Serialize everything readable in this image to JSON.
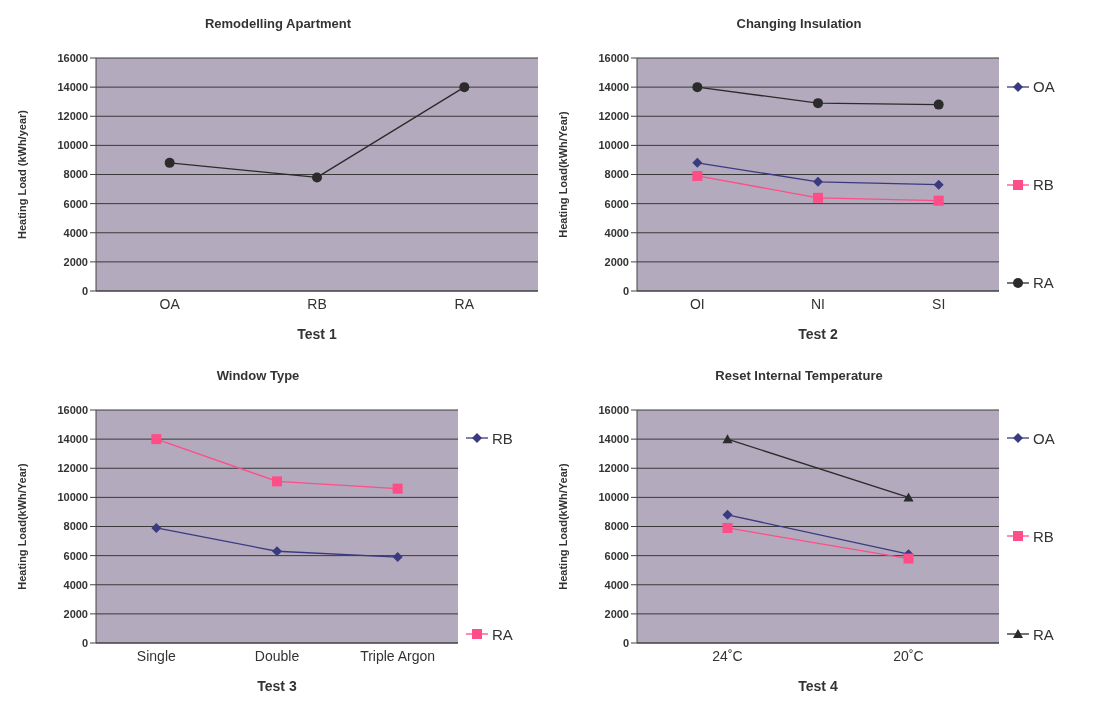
{
  "chart_data": [
    {
      "type": "line",
      "title": "Remodelling Apartment",
      "xlabel": "Test 1",
      "ylabel": "Heating Load (kWh/year)",
      "categories": [
        "OA",
        "RB",
        "RA"
      ],
      "series": [
        {
          "color": "#2b2b2b",
          "marker": "circle",
          "values": [
            8800,
            7800,
            14000
          ]
        }
      ],
      "ylim": [
        0,
        16000
      ],
      "yticks": [
        0,
        2000,
        4000,
        6000,
        8000,
        10000,
        12000,
        14000,
        16000
      ],
      "grid": "y",
      "legend": false
    },
    {
      "type": "line",
      "title": "Changing Insulation",
      "xlabel": "Test 2",
      "ylabel": "Heating Load(kWh/Year)",
      "categories": [
        "OI",
        "NI",
        "SI"
      ],
      "series": [
        {
          "name": "OA",
          "color": "#3a3a80",
          "marker": "diamond",
          "values": [
            8800,
            7500,
            7300
          ]
        },
        {
          "name": "RB",
          "color": "#ff4d88",
          "marker": "square",
          "values": [
            7900,
            6400,
            6200
          ]
        },
        {
          "name": "RA",
          "color": "#2b2b2b",
          "marker": "circle",
          "values": [
            14000,
            12900,
            12800
          ]
        }
      ],
      "ylim": [
        0,
        16000
      ],
      "yticks": [
        0,
        2000,
        4000,
        6000,
        8000,
        10000,
        12000,
        14000,
        16000
      ],
      "grid": "y",
      "legend": "right"
    },
    {
      "type": "line",
      "title": "Window Type",
      "xlabel": "Test 3",
      "ylabel": "Heating Load(kWh/Year)",
      "categories": [
        "Single",
        "Double",
        "Triple Argon"
      ],
      "series": [
        {
          "name": "RB",
          "color": "#3a3a80",
          "marker": "diamond",
          "values": [
            7900,
            6300,
            5900
          ]
        },
        {
          "name": "RA",
          "color": "#ff4d88",
          "marker": "square",
          "values": [
            14000,
            11100,
            10600
          ]
        }
      ],
      "ylim": [
        0,
        16000
      ],
      "yticks": [
        0,
        2000,
        4000,
        6000,
        8000,
        10000,
        12000,
        14000,
        16000
      ],
      "grid": "y",
      "legend": "right"
    },
    {
      "type": "line",
      "title": "Reset Internal Temperature",
      "xlabel": "Test 4",
      "ylabel": "Heating Load(kWh/Year)",
      "categories": [
        "24˚C",
        "20˚C"
      ],
      "series": [
        {
          "name": "OA",
          "color": "#3a3a80",
          "marker": "diamond",
          "values": [
            8800,
            6100
          ]
        },
        {
          "name": "RB",
          "color": "#ff4d88",
          "marker": "square",
          "values": [
            7900,
            5800
          ]
        },
        {
          "name": "RA",
          "color": "#2b2b2b",
          "marker": "triangle",
          "values": [
            14000,
            10000
          ]
        }
      ],
      "ylim": [
        0,
        16000
      ],
      "yticks": [
        0,
        2000,
        4000,
        6000,
        8000,
        10000,
        12000,
        14000,
        16000
      ],
      "grid": "y",
      "legend": "right"
    }
  ]
}
